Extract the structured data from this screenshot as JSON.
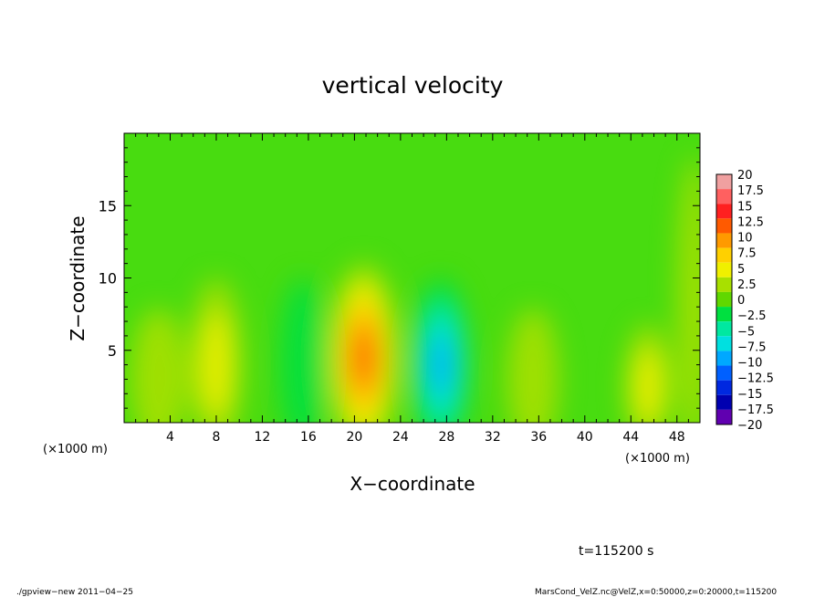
{
  "chart_data": {
    "type": "heatmap",
    "title": "vertical velocity",
    "xlabel": "X−coordinate",
    "ylabel": "Z−coordinate",
    "x_unit_left": "(×1000 m)",
    "x_unit_right": "(×1000 m)",
    "xlim": [
      0,
      50
    ],
    "ylim": [
      0,
      20
    ],
    "x_ticks": [
      4,
      8,
      12,
      16,
      20,
      24,
      28,
      32,
      36,
      40,
      44,
      48
    ],
    "y_ticks": [
      5,
      10,
      15
    ],
    "time_label": "t=115200 s",
    "colorbar": {
      "labels": [
        "20",
        "17.5",
        "15",
        "12.5",
        "10",
        "7.5",
        "5",
        "2.5",
        "0",
        "−2.5",
        "−5",
        "−7.5",
        "−10",
        "−12.5",
        "−15",
        "−17.5",
        "−20"
      ],
      "colors": [
        "#f0a0a0",
        "#ff6060",
        "#ff2020",
        "#ff5a00",
        "#ff9a00",
        "#ffd000",
        "#f0f000",
        "#a8e000",
        "#60d800",
        "#00e040",
        "#00e8a0",
        "#00e0e0",
        "#00a8ff",
        "#0060ff",
        "#0028e0",
        "#0000b0",
        "#6000b0"
      ]
    },
    "features": [
      {
        "x": 3,
        "z": 3,
        "w": 5,
        "vz": 3
      },
      {
        "x": 8,
        "z": 4,
        "w": 4.5,
        "vz": 4
      },
      {
        "x": 15.5,
        "z": 4,
        "w": 4,
        "vz": -3
      },
      {
        "x": 20.8,
        "z": 4.5,
        "w": 6,
        "vz": 12
      },
      {
        "x": 27.5,
        "z": 4,
        "w": 5,
        "vz": -9
      },
      {
        "x": 35.5,
        "z": 3,
        "w": 4.5,
        "vz": 3
      },
      {
        "x": 45.5,
        "z": 2.5,
        "w": 4,
        "vz": 4
      },
      {
        "x": 49.5,
        "z": 8,
        "w": 3,
        "vz": 2
      }
    ]
  },
  "footer": {
    "program": "./gpview−new   2011−04−25",
    "source": "MarsCond_VelZ.nc@VelZ,x=0:50000,z=0:20000,t=115200"
  }
}
